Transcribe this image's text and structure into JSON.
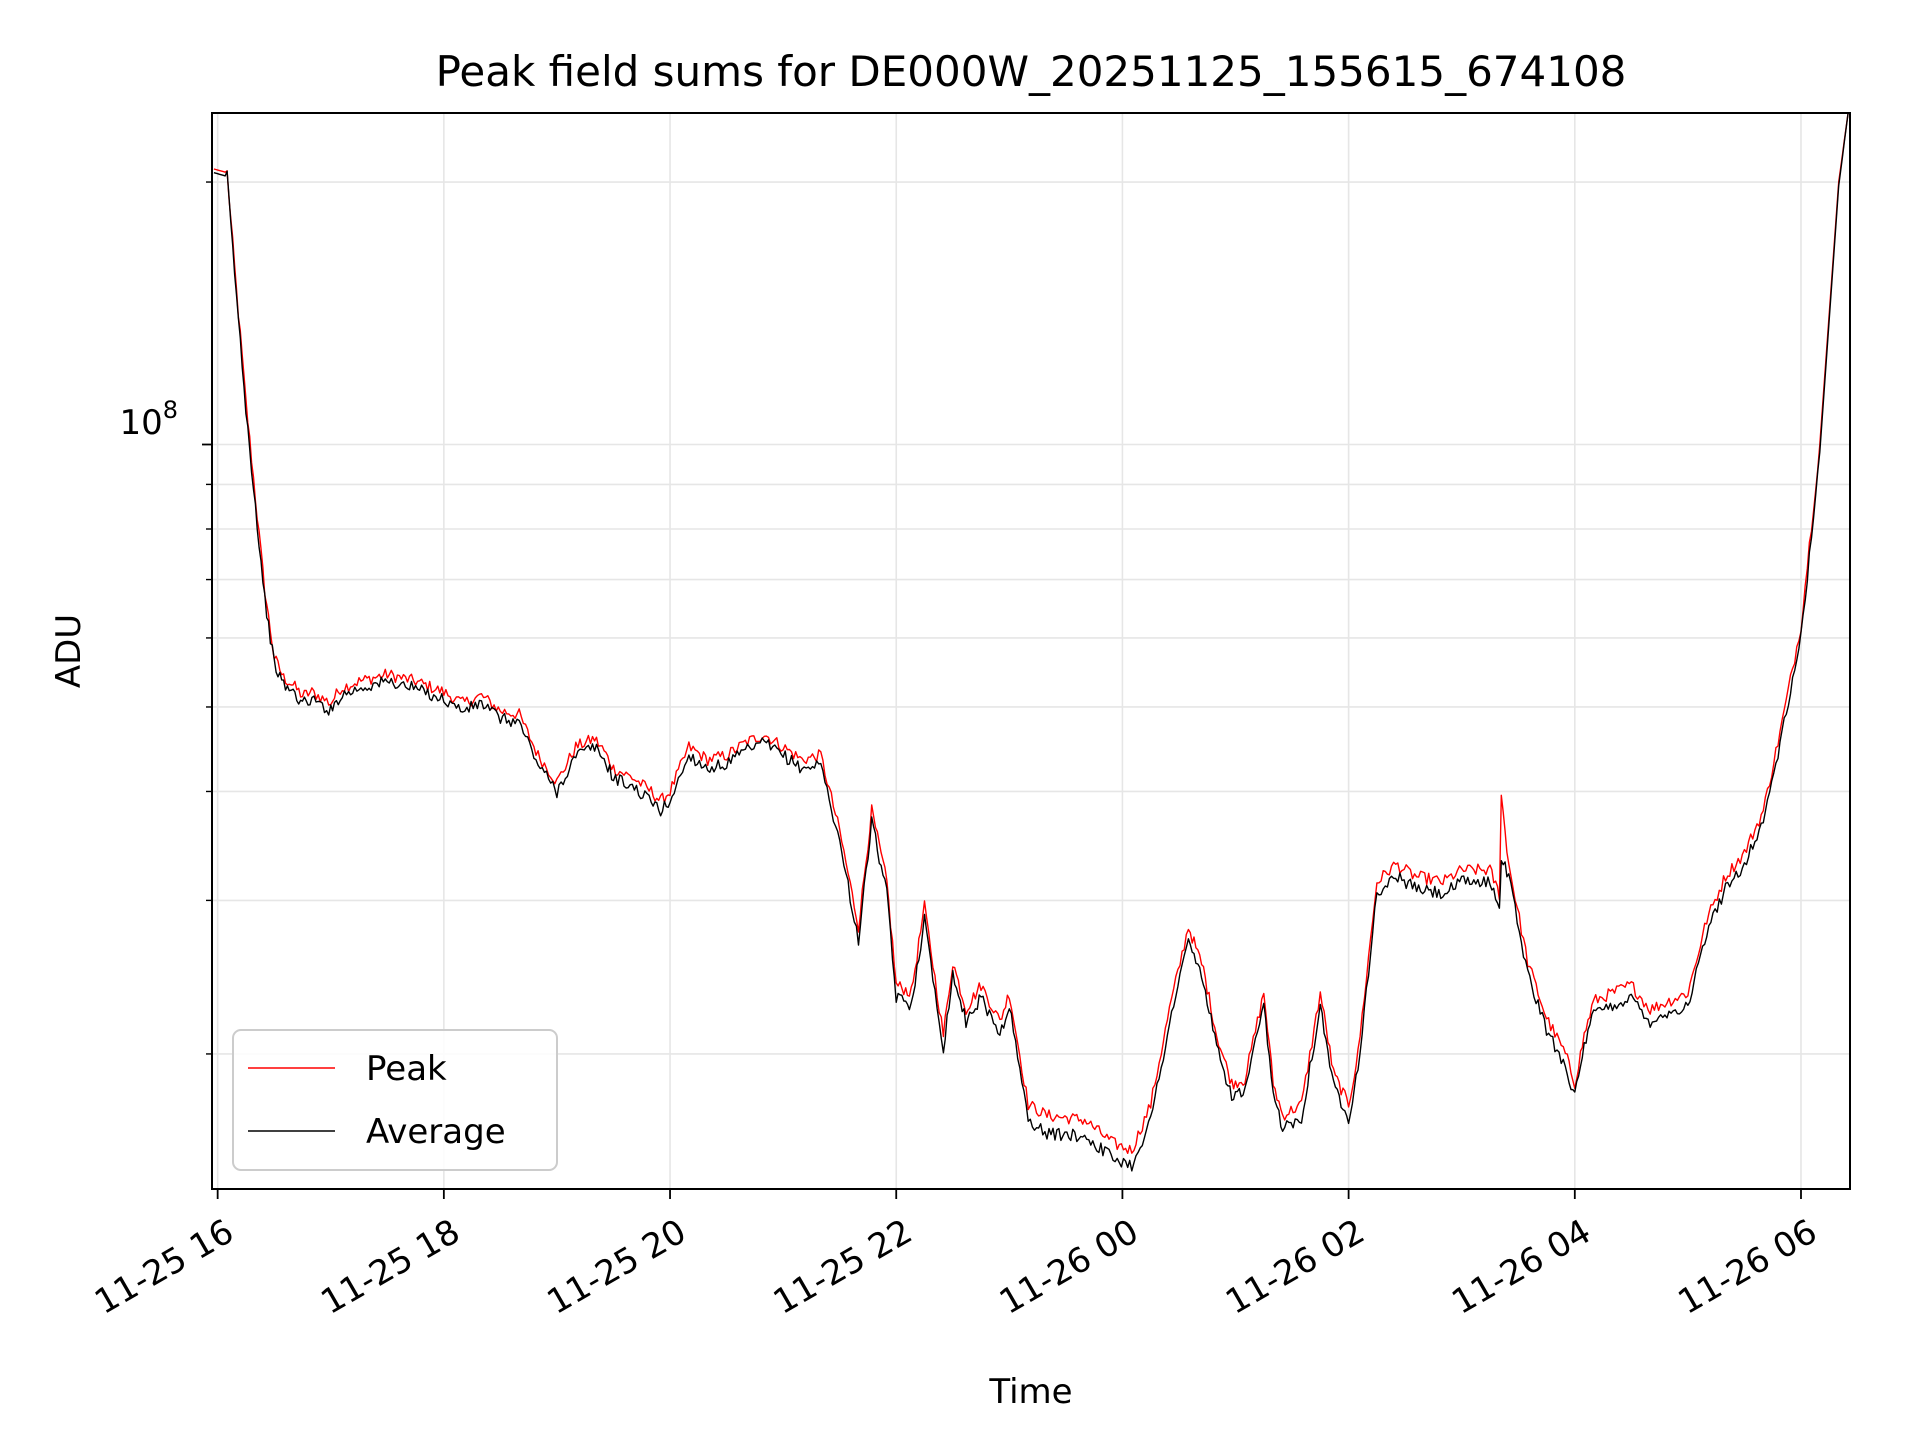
{
  "chart_data": {
    "type": "line",
    "title": "Peak field sums for DE000W_20251125_155615_674108",
    "xlabel": "Time",
    "ylabel": "ADU",
    "yscale": "log",
    "y_major_tick_label_base": "10",
    "y_major_tick_label_exponent": "8",
    "grid": true,
    "legend_position": "lower-left",
    "x_tick_labels": [
      "11-25 16",
      "11-25 18",
      "11-25 20",
      "11-25 22",
      "11-26 00",
      "11-26 02",
      "11-26 04",
      "11-26 06"
    ],
    "x_tick_times": [
      "2025-11-25 16:00",
      "2025-11-25 18:00",
      "2025-11-25 20:00",
      "2025-11-25 22:00",
      "2025-11-26 00:00",
      "2025-11-26 02:00",
      "2025-11-26 04:00",
      "2025-11-26 06:00"
    ],
    "xlim": [
      "2025-11-25 15:57",
      "2025-11-26 06:26"
    ],
    "ylim": [
      14000000,
      240000000
    ],
    "y_gridlines": [
      20000000,
      30000000,
      40000000,
      50000000,
      60000000,
      70000000,
      80000000,
      90000000,
      100000000,
      200000000
    ],
    "series": [
      {
        "name": "Peak",
        "color": "#ff0000",
        "x": [
          "2025-11-25 15:58",
          "2025-11-25 16:05",
          "2025-11-25 16:10",
          "2025-11-25 16:15",
          "2025-11-25 16:20",
          "2025-11-25 16:25",
          "2025-11-25 16:30",
          "2025-11-25 16:35",
          "2025-11-25 16:40",
          "2025-11-25 16:45",
          "2025-11-25 16:50",
          "2025-11-25 17:00",
          "2025-11-25 17:05",
          "2025-11-25 17:15",
          "2025-11-25 17:30",
          "2025-11-25 17:45",
          "2025-11-25 18:00",
          "2025-11-25 18:10",
          "2025-11-25 18:20",
          "2025-11-25 18:30",
          "2025-11-25 18:40",
          "2025-11-25 18:50",
          "2025-11-25 19:00",
          "2025-11-25 19:10",
          "2025-11-25 19:20",
          "2025-11-25 19:25",
          "2025-11-25 19:30",
          "2025-11-25 19:40",
          "2025-11-25 19:50",
          "2025-11-25 19:55",
          "2025-11-25 20:00",
          "2025-11-25 20:10",
          "2025-11-25 20:20",
          "2025-11-25 20:30",
          "2025-11-25 20:40",
          "2025-11-25 20:50",
          "2025-11-25 21:00",
          "2025-11-25 21:10",
          "2025-11-25 21:20",
          "2025-11-25 21:30",
          "2025-11-25 21:40",
          "2025-11-25 21:47",
          "2025-11-25 21:55",
          "2025-11-25 22:00",
          "2025-11-25 22:08",
          "2025-11-25 22:15",
          "2025-11-25 22:25",
          "2025-11-25 22:30",
          "2025-11-25 22:37",
          "2025-11-25 22:45",
          "2025-11-25 22:55",
          "2025-11-25 23:00",
          "2025-11-25 23:10",
          "2025-11-25 23:20",
          "2025-11-25 23:40",
          "2025-11-25 23:55",
          "2025-11-26 00:05",
          "2025-11-26 00:15",
          "2025-11-26 00:25",
          "2025-11-26 00:35",
          "2025-11-26 00:43",
          "2025-11-26 00:50",
          "2025-11-26 00:58",
          "2025-11-26 01:05",
          "2025-11-26 01:15",
          "2025-11-26 01:20",
          "2025-11-26 01:25",
          "2025-11-26 01:35",
          "2025-11-26 01:45",
          "2025-11-26 01:52",
          "2025-11-26 02:00",
          "2025-11-26 02:05",
          "2025-11-26 02:15",
          "2025-11-26 02:25",
          "2025-11-26 02:35",
          "2025-11-26 02:50",
          "2025-11-26 03:00",
          "2025-11-26 03:15",
          "2025-11-26 03:20",
          "2025-11-26 03:21",
          "2025-11-26 03:25",
          "2025-11-26 03:35",
          "2025-11-26 03:45",
          "2025-11-26 03:55",
          "2025-11-26 04:00",
          "2025-11-26 04:05",
          "2025-11-26 04:10",
          "2025-11-26 04:20",
          "2025-11-26 04:30",
          "2025-11-26 04:40",
          "2025-11-26 04:50",
          "2025-11-26 05:00",
          "2025-11-26 05:10",
          "2025-11-26 05:20",
          "2025-11-26 05:30",
          "2025-11-26 05:40",
          "2025-11-26 05:50",
          "2025-11-26 06:00",
          "2025-11-26 06:10",
          "2025-11-26 06:20",
          "2025-11-26 06:25"
        ],
        "values": [
          207000000,
          205000000,
          150000000,
          112000000,
          87000000,
          68000000,
          57000000,
          54000000,
          53000000,
          51500000,
          52000000,
          50500000,
          52500000,
          53500000,
          54500000,
          53500000,
          52000000,
          50500000,
          51500000,
          49500000,
          49000000,
          44000000,
          41000000,
          45000000,
          46000000,
          44500000,
          42500000,
          41500000,
          40000000,
          39000000,
          40000000,
          45000000,
          43500000,
          44000000,
          45500000,
          46500000,
          45000000,
          43500000,
          44000000,
          36000000,
          28000000,
          38000000,
          31500000,
          24000000,
          23500000,
          29500000,
          21000000,
          25500000,
          22500000,
          24000000,
          21800000,
          23500000,
          17500000,
          17000000,
          16800000,
          15800000,
          15500000,
          17500000,
          22500000,
          28000000,
          25000000,
          21000000,
          18500000,
          18700000,
          23500000,
          18500000,
          17000000,
          17500000,
          23500000,
          19000000,
          17500000,
          20000000,
          31500000,
          33000000,
          32000000,
          31500000,
          32500000,
          32500000,
          30500000,
          39500000,
          33000000,
          25500000,
          22000000,
          20000000,
          18500000,
          21000000,
          23000000,
          23500000,
          24000000,
          22500000,
          23000000,
          23500000,
          28500000,
          32000000,
          34000000,
          38000000,
          48000000,
          62000000,
          100000000,
          200000000,
          240000000
        ]
      },
      {
        "name": "Average",
        "color": "#000000",
        "x": [
          "2025-11-25 15:58",
          "2025-11-25 16:05",
          "2025-11-25 16:10",
          "2025-11-25 16:15",
          "2025-11-25 16:20",
          "2025-11-25 16:25",
          "2025-11-25 16:30",
          "2025-11-25 16:35",
          "2025-11-25 16:40",
          "2025-11-25 16:45",
          "2025-11-25 16:50",
          "2025-11-25 17:00",
          "2025-11-25 17:05",
          "2025-11-25 17:15",
          "2025-11-25 17:30",
          "2025-11-25 17:45",
          "2025-11-25 18:00",
          "2025-11-25 18:10",
          "2025-11-25 18:20",
          "2025-11-25 18:30",
          "2025-11-25 18:40",
          "2025-11-25 18:50",
          "2025-11-25 19:00",
          "2025-11-25 19:10",
          "2025-11-25 19:20",
          "2025-11-25 19:25",
          "2025-11-25 19:30",
          "2025-11-25 19:40",
          "2025-11-25 19:50",
          "2025-11-25 19:55",
          "2025-11-25 20:00",
          "2025-11-25 20:10",
          "2025-11-25 20:20",
          "2025-11-25 20:30",
          "2025-11-25 20:40",
          "2025-11-25 20:50",
          "2025-11-25 21:00",
          "2025-11-25 21:10",
          "2025-11-25 21:20",
          "2025-11-25 21:30",
          "2025-11-25 21:40",
          "2025-11-25 21:47",
          "2025-11-25 21:55",
          "2025-11-25 22:00",
          "2025-11-25 22:08",
          "2025-11-25 22:15",
          "2025-11-25 22:25",
          "2025-11-25 22:30",
          "2025-11-25 22:37",
          "2025-11-25 22:45",
          "2025-11-25 22:55",
          "2025-11-25 23:00",
          "2025-11-25 23:10",
          "2025-11-25 23:20",
          "2025-11-25 23:40",
          "2025-11-25 23:55",
          "2025-11-26 00:05",
          "2025-11-26 00:15",
          "2025-11-26 00:25",
          "2025-11-26 00:35",
          "2025-11-26 00:43",
          "2025-11-26 00:50",
          "2025-11-26 00:58",
          "2025-11-26 01:05",
          "2025-11-26 01:15",
          "2025-11-26 01:20",
          "2025-11-26 01:25",
          "2025-11-26 01:35",
          "2025-11-26 01:45",
          "2025-11-26 01:52",
          "2025-11-26 02:00",
          "2025-11-26 02:05",
          "2025-11-26 02:15",
          "2025-11-26 02:25",
          "2025-11-26 02:35",
          "2025-11-26 02:50",
          "2025-11-26 03:00",
          "2025-11-26 03:15",
          "2025-11-26 03:20",
          "2025-11-26 03:21",
          "2025-11-26 03:25",
          "2025-11-26 03:35",
          "2025-11-26 03:45",
          "2025-11-26 03:55",
          "2025-11-26 04:00",
          "2025-11-26 04:05",
          "2025-11-26 04:10",
          "2025-11-26 04:20",
          "2025-11-26 04:30",
          "2025-11-26 04:40",
          "2025-11-26 04:50",
          "2025-11-26 05:00",
          "2025-11-26 05:10",
          "2025-11-26 05:20",
          "2025-11-26 05:30",
          "2025-11-26 05:40",
          "2025-11-26 05:50",
          "2025-11-26 06:00",
          "2025-11-26 06:10",
          "2025-11-26 06:20",
          "2025-11-26 06:25"
        ],
        "values": [
          205000000,
          203000000,
          148000000,
          110000000,
          85000000,
          66500000,
          56000000,
          53000000,
          52000000,
          50500000,
          51000000,
          49500000,
          51500000,
          52500000,
          53500000,
          52500000,
          51000000,
          49500000,
          50500000,
          48500000,
          48000000,
          43000000,
          40000000,
          44000000,
          45000000,
          43500000,
          41500000,
          40500000,
          39000000,
          38000000,
          39000000,
          44000000,
          42500000,
          43000000,
          44500000,
          45500000,
          44000000,
          42500000,
          43000000,
          35000000,
          27000000,
          37000000,
          30500000,
          23200000,
          22800000,
          28500000,
          20300000,
          24700000,
          21800000,
          23200000,
          21100000,
          22700000,
          16800000,
          16200000,
          16100000,
          15200000,
          14900000,
          16800000,
          21700000,
          27000000,
          24200000,
          20300000,
          17900000,
          18100000,
          22700000,
          17900000,
          16500000,
          16900000,
          22700000,
          18400000,
          16900000,
          19300000,
          30500000,
          32000000,
          31000000,
          30500000,
          31500000,
          31500000,
          29500000,
          33500000,
          32000000,
          24700000,
          21300000,
          19400000,
          17900000,
          20300000,
          22300000,
          22700000,
          23200000,
          21800000,
          22300000,
          22700000,
          27500000,
          31000000,
          33000000,
          37000000,
          46500000,
          60000000,
          98000000,
          198000000,
          240000000
        ]
      }
    ]
  }
}
